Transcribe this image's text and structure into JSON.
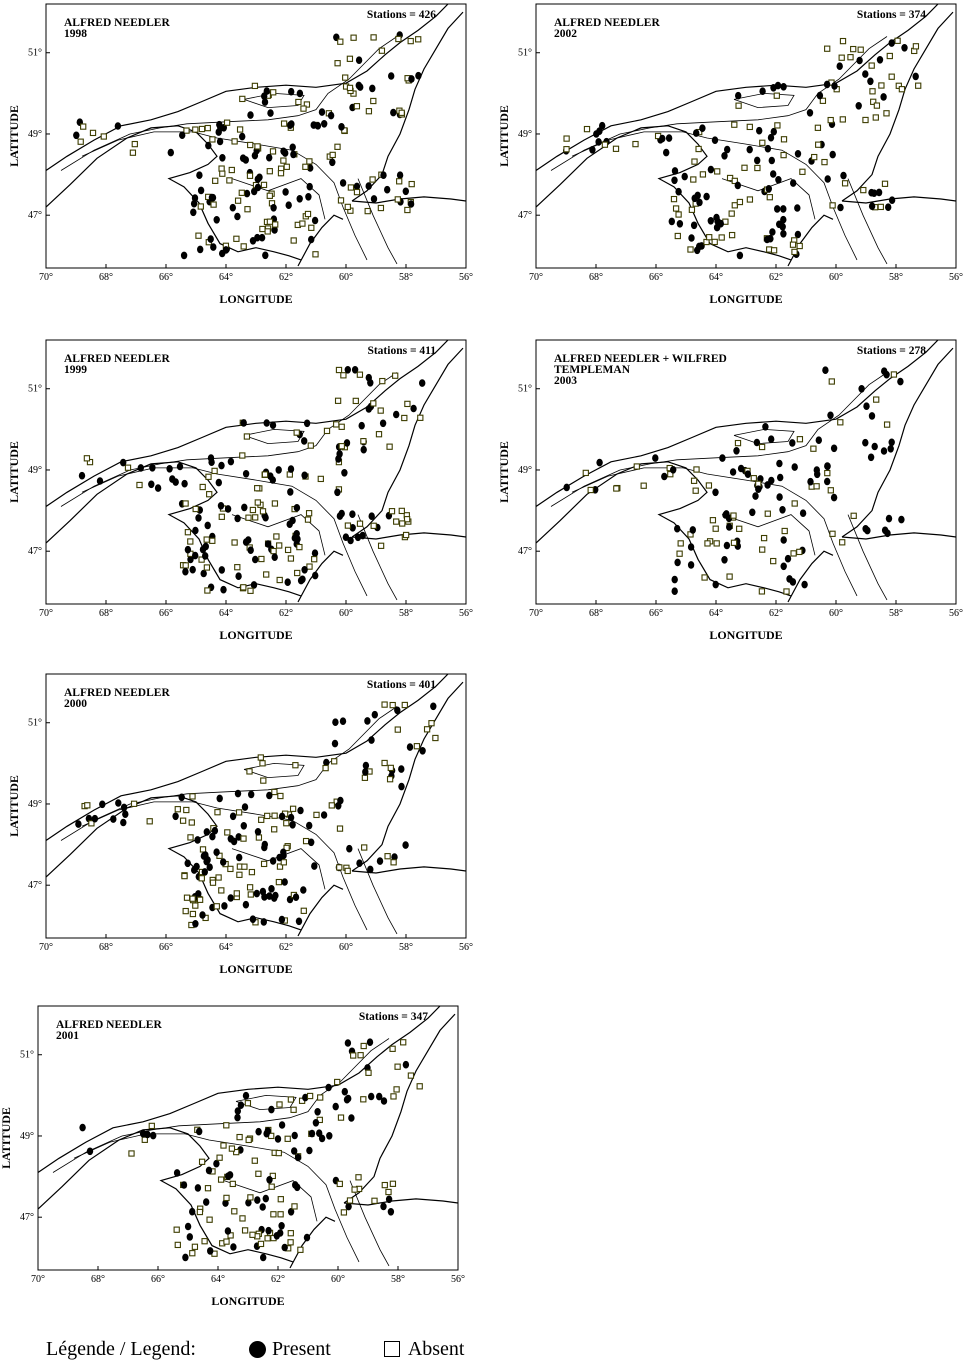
{
  "panels": [
    {
      "id": "p1998",
      "title_lines": [
        "ALFRED NEEDLER",
        "1998"
      ],
      "stations_label": "Stations = 426",
      "stations": 426,
      "present_share": 0.42
    },
    {
      "id": "p2002",
      "title_lines": [
        "ALFRED NEEDLER",
        "2002"
      ],
      "stations_label": "Stations = 374",
      "stations": 374,
      "present_share": 0.55
    },
    {
      "id": "p1999",
      "title_lines": [
        "ALFRED NEEDLER",
        "1999"
      ],
      "stations_label": "Stations = 411",
      "stations": 411,
      "present_share": 0.45
    },
    {
      "id": "p2003",
      "title_lines": [
        "ALFRED NEEDLER + WILFRED",
        "TEMPLEMAN",
        "2003"
      ],
      "stations_label": "Stations = 278",
      "stations": 278,
      "present_share": 0.62
    },
    {
      "id": "p2000",
      "title_lines": [
        "ALFRED NEEDLER",
        "2000"
      ],
      "stations_label": "Stations = 401",
      "stations": 401,
      "present_share": 0.5
    },
    {
      "id": "p2001",
      "title_lines": [
        "ALFRED NEEDLER",
        "2001"
      ],
      "stations_label": "Stations = 347",
      "stations": 347,
      "present_share": 0.46
    }
  ],
  "axes": {
    "xlabel": "LONGITUDE",
    "ylabel": "LATITUDE",
    "xticks": [
      "70°",
      "68°",
      "66°",
      "64°",
      "62°",
      "60°",
      "58°",
      "56°"
    ],
    "yticks": [
      "51°",
      "49°",
      "47°"
    ],
    "lon_range": [
      70,
      56
    ],
    "lat_range": [
      52.2,
      45.7
    ]
  },
  "legend": {
    "title": "Légende / Legend:",
    "items": [
      {
        "symbol": "filled-circle",
        "label": "Present"
      },
      {
        "symbol": "open-square",
        "label": "Absent"
      }
    ]
  },
  "colors": {
    "present": "#000000",
    "absent_edge": "#3d3d00",
    "absent_fill": "#ffffff",
    "map_line": "#000000"
  }
}
